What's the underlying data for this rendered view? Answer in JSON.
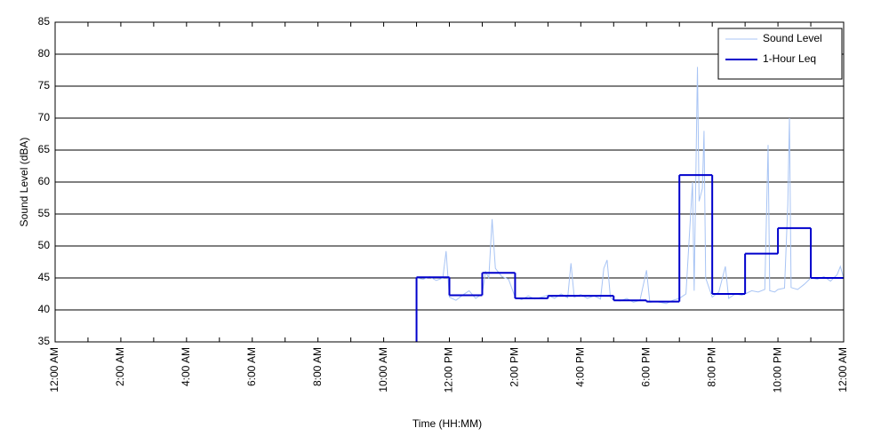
{
  "chart_data": {
    "type": "line",
    "xlabel": "Time (HH:MM)",
    "ylabel": "Sound Level (dBA)",
    "xlim": [
      0,
      24
    ],
    "ylim": [
      35,
      85
    ],
    "xticks": [
      {
        "value": 0,
        "label": "12:00 AM"
      },
      {
        "value": 2,
        "label": "2:00 AM"
      },
      {
        "value": 4,
        "label": "4:00 AM"
      },
      {
        "value": 6,
        "label": "6:00 AM"
      },
      {
        "value": 8,
        "label": "8:00 AM"
      },
      {
        "value": 10,
        "label": "10:00 AM"
      },
      {
        "value": 12,
        "label": "12:00 PM"
      },
      {
        "value": 14,
        "label": "2:00 PM"
      },
      {
        "value": 16,
        "label": "4:00 PM"
      },
      {
        "value": 18,
        "label": "6:00 PM"
      },
      {
        "value": 20,
        "label": "8:00 PM"
      },
      {
        "value": 22,
        "label": "10:00 PM"
      },
      {
        "value": 24,
        "label": "12:00 AM"
      }
    ],
    "xminorticks": [
      1,
      3,
      5,
      7,
      9,
      11,
      13,
      15,
      17,
      19,
      21,
      23
    ],
    "yticks": [
      35,
      40,
      45,
      50,
      55,
      60,
      65,
      70,
      75,
      80,
      85
    ],
    "grid": true,
    "legend": "upper right",
    "series": [
      {
        "name": "Sound Level",
        "color": "#a8c4f4",
        "x": [
          11.0,
          11.2,
          11.4,
          11.6,
          11.8,
          11.9,
          12.0,
          12.2,
          12.4,
          12.6,
          12.8,
          13.0,
          13.1,
          13.2,
          13.3,
          13.4,
          13.6,
          13.8,
          14.0,
          14.2,
          14.4,
          14.6,
          14.8,
          15.0,
          15.2,
          15.4,
          15.6,
          15.7,
          15.8,
          16.0,
          16.2,
          16.4,
          16.6,
          16.7,
          16.8,
          16.9,
          17.0,
          17.2,
          17.4,
          17.6,
          17.8,
          18.0,
          18.1,
          18.3,
          18.6,
          18.8,
          19.0,
          19.2,
          19.4,
          19.45,
          19.55,
          19.6,
          19.7,
          19.75,
          19.8,
          20.0,
          20.2,
          20.4,
          20.5,
          20.7,
          20.9,
          21.0,
          21.2,
          21.4,
          21.6,
          21.7,
          21.75,
          21.9,
          22.0,
          22.2,
          22.3,
          22.35,
          22.4,
          22.6,
          22.8,
          23.0,
          23.2,
          23.4,
          23.6,
          23.8,
          23.9,
          24.0
        ],
        "values": [
          45.0,
          44.8,
          45.2,
          44.6,
          45.0,
          49.2,
          42.0,
          41.5,
          42.3,
          43.0,
          41.8,
          42.5,
          46.0,
          45.0,
          54.2,
          46.5,
          45.2,
          44.8,
          42.0,
          41.6,
          42.2,
          41.7,
          42.0,
          42.3,
          41.8,
          42.5,
          41.9,
          47.3,
          42.0,
          42.4,
          41.8,
          42.2,
          41.7,
          46.5,
          47.8,
          42.0,
          41.5,
          41.4,
          41.8,
          41.2,
          41.5,
          46.2,
          41.2,
          41.3,
          41.0,
          41.5,
          41.8,
          42.5,
          60.0,
          43.0,
          78.0,
          57.0,
          59.0,
          68.0,
          45.0,
          42.0,
          42.8,
          46.8,
          41.8,
          42.5,
          42.3,
          42.5,
          43.0,
          42.8,
          43.2,
          65.8,
          43.0,
          42.8,
          43.2,
          43.4,
          56.5,
          70.0,
          43.5,
          43.2,
          44.0,
          45.0,
          44.8,
          45.2,
          44.5,
          45.5,
          46.8,
          45.0
        ]
      },
      {
        "name": "1-Hour Leq",
        "color": "#0000cc",
        "drawstyle": "steps-post",
        "x": [
          11,
          12,
          13,
          14,
          15,
          16,
          17,
          18,
          19,
          20,
          21,
          22,
          23
        ],
        "values": [
          45.1,
          42.3,
          45.8,
          41.8,
          42.2,
          42.2,
          41.5,
          41.3,
          61.1,
          42.5,
          48.8,
          52.8,
          45.0
        ]
      }
    ]
  }
}
